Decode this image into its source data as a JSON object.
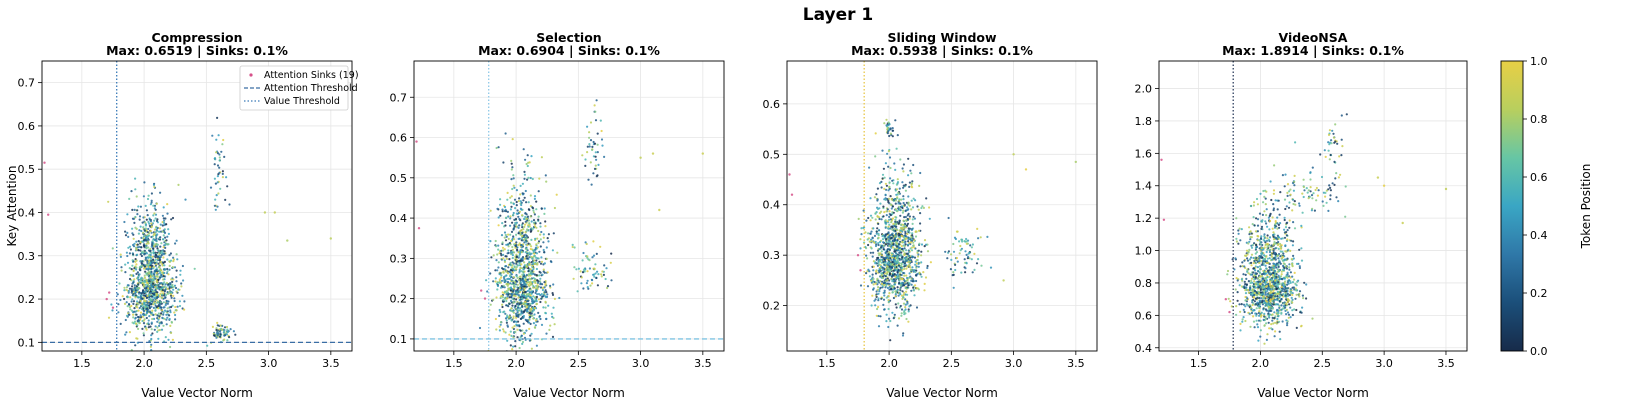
{
  "figure": {
    "suptitle": "Layer 1",
    "colorbar_label": "Token Position",
    "colorbar_ticks": [
      "0.0",
      "0.2",
      "0.4",
      "0.6",
      "0.8",
      "1.0"
    ],
    "colorbar_range": [
      0,
      1
    ],
    "colormap": [
      "#172b4a",
      "#1b4f7a",
      "#2f78a8",
      "#3aa6c4",
      "#67c6a4",
      "#b8cf5e",
      "#e8cf45"
    ]
  },
  "chart_data": [
    {
      "type": "scatter",
      "title": "Compression",
      "subtitle": "Max: 0.6519 | Sinks: 0.1%",
      "xlabel": "Value Vector Norm",
      "ylabel": "Key Attention",
      "xlim": [
        1.18,
        3.67
      ],
      "ylim": [
        0.08,
        0.75
      ],
      "xticks": [
        1.5,
        2.0,
        2.5,
        3.0,
        3.5
      ],
      "xtick_labels": [
        "1.5",
        "2.0",
        "2.5",
        "3.0",
        "3.5"
      ],
      "yticks": [
        0.1,
        0.2,
        0.3,
        0.4,
        0.5,
        0.6,
        0.7
      ],
      "ytick_labels": [
        "0.1",
        "0.2",
        "0.3",
        "0.4",
        "0.5",
        "0.6",
        "0.7"
      ],
      "grid": true,
      "value_threshold": 1.78,
      "value_threshold_color": "#3a7ab8",
      "attention_threshold": 0.1,
      "attention_threshold_color": "#3a6ea5",
      "cluster": {
        "center": [
          2.05,
          0.24
        ],
        "sd": [
          0.1,
          0.065
        ],
        "n": 1300
      },
      "extra_clusters": [
        {
          "center": [
            2.62,
            0.12
          ],
          "sd": [
            0.05,
            0.01
          ],
          "n": 70
        },
        {
          "center": [
            2.6,
            0.5
          ],
          "sd": [
            0.03,
            0.06
          ],
          "n": 45
        }
      ],
      "outliers": [
        [
          1.2,
          0.515
        ],
        [
          1.23,
          0.395
        ],
        [
          2.97,
          0.4
        ],
        [
          3.05,
          0.4
        ],
        [
          3.15,
          0.335
        ],
        [
          3.5,
          0.34
        ],
        [
          1.7,
          0.2
        ],
        [
          1.72,
          0.215
        ],
        [
          1.75,
          0.18
        ]
      ],
      "legend": {
        "placement": "top-right",
        "items": [
          "Attention Sinks (19)",
          "Attention Threshold",
          "Value Threshold"
        ]
      }
    },
    {
      "type": "scatter",
      "title": "Selection",
      "subtitle": "Max: 0.6904 | Sinks: 0.1%",
      "xlabel": "Value Vector Norm",
      "xlim": [
        1.18,
        3.67
      ],
      "ylim": [
        0.07,
        0.79
      ],
      "xticks": [
        1.5,
        2.0,
        2.5,
        3.0,
        3.5
      ],
      "xtick_labels": [
        "1.5",
        "2.0",
        "2.5",
        "3.0",
        "3.5"
      ],
      "yticks": [
        0.1,
        0.2,
        0.3,
        0.4,
        0.5,
        0.6,
        0.7
      ],
      "ytick_labels": [
        "0.1",
        "0.2",
        "0.3",
        "0.4",
        "0.5",
        "0.6",
        "0.7"
      ],
      "grid": true,
      "value_threshold": 1.78,
      "value_threshold_color": "#8ec9e8",
      "attention_threshold": 0.1,
      "attention_threshold_color": "#7fc4e2",
      "cluster": {
        "center": [
          2.05,
          0.25
        ],
        "sd": [
          0.1,
          0.085
        ],
        "n": 1300
      },
      "extra_clusters": [
        {
          "center": [
            2.6,
            0.27
          ],
          "sd": [
            0.07,
            0.03
          ],
          "n": 70
        },
        {
          "center": [
            2.62,
            0.58
          ],
          "sd": [
            0.04,
            0.05
          ],
          "n": 45
        }
      ],
      "outliers": [
        [
          1.2,
          0.59
        ],
        [
          1.22,
          0.375
        ],
        [
          3.0,
          0.55
        ],
        [
          3.1,
          0.56
        ],
        [
          3.5,
          0.56
        ],
        [
          3.15,
          0.42
        ],
        [
          1.72,
          0.22
        ],
        [
          1.75,
          0.2
        ]
      ]
    },
    {
      "type": "scatter",
      "title": "Sliding Window",
      "subtitle": "Max: 0.5938 | Sinks: 0.1%",
      "xlabel": "Value Vector Norm",
      "xlim": [
        1.18,
        3.67
      ],
      "ylim": [
        0.11,
        0.685
      ],
      "xticks": [
        1.5,
        2.0,
        2.5,
        3.0,
        3.5
      ],
      "xtick_labels": [
        "1.5",
        "2.0",
        "2.5",
        "3.0",
        "3.5"
      ],
      "yticks": [
        0.2,
        0.3,
        0.4,
        0.5,
        0.6
      ],
      "ytick_labels": [
        "0.2",
        "0.3",
        "0.4",
        "0.5",
        "0.6"
      ],
      "grid": true,
      "value_threshold": 1.8,
      "value_threshold_color": "#e8c84a",
      "attention_threshold": null,
      "cluster": {
        "center": [
          2.05,
          0.3
        ],
        "sd": [
          0.1,
          0.06
        ],
        "n": 1300
      },
      "extra_clusters": [
        {
          "center": [
            2.6,
            0.3
          ],
          "sd": [
            0.08,
            0.03
          ],
          "n": 70
        },
        {
          "center": [
            2.0,
            0.55
          ],
          "sd": [
            0.02,
            0.01
          ],
          "n": 30
        }
      ],
      "outliers": [
        [
          1.2,
          0.46
        ],
        [
          1.22,
          0.42
        ],
        [
          3.0,
          0.5
        ],
        [
          3.1,
          0.47
        ],
        [
          3.5,
          0.485
        ],
        [
          2.92,
          0.25
        ],
        [
          1.75,
          0.3
        ],
        [
          1.77,
          0.27
        ]
      ]
    },
    {
      "type": "scatter",
      "title": "VideoNSA",
      "subtitle": "Max: 1.8914 | Sinks: 0.1%",
      "xlabel": "Value Vector Norm",
      "xlim": [
        1.18,
        3.67
      ],
      "ylim": [
        0.38,
        2.17
      ],
      "xticks": [
        1.5,
        2.0,
        2.5,
        3.0,
        3.5
      ],
      "xtick_labels": [
        "1.5",
        "2.0",
        "2.5",
        "3.0",
        "3.5"
      ],
      "yticks": [
        0.4,
        0.6,
        0.8,
        1.0,
        1.2,
        1.4,
        1.6,
        1.8,
        2.0
      ],
      "ytick_labels": [
        "0.4",
        "0.6",
        "0.8",
        "1.0",
        "1.2",
        "1.4",
        "1.6",
        "1.8",
        "2.0"
      ],
      "grid": true,
      "value_threshold": 1.78,
      "value_threshold_color": "#2d3f5e",
      "attention_threshold": null,
      "cluster": {
        "center": [
          2.07,
          0.8
        ],
        "sd": [
          0.11,
          0.15
        ],
        "n": 1300
      },
      "extra_clusters": [
        {
          "center": [
            2.4,
            1.35
          ],
          "sd": [
            0.12,
            0.07
          ],
          "n": 80
        },
        {
          "center": [
            2.6,
            1.6
          ],
          "sd": [
            0.04,
            0.12
          ],
          "n": 40
        }
      ],
      "outliers": [
        [
          1.2,
          1.56
        ],
        [
          1.22,
          1.19
        ],
        [
          2.95,
          1.45
        ],
        [
          3.0,
          1.4
        ],
        [
          3.15,
          1.17
        ],
        [
          3.5,
          1.38
        ],
        [
          1.72,
          0.7
        ],
        [
          1.75,
          0.62
        ]
      ]
    }
  ]
}
